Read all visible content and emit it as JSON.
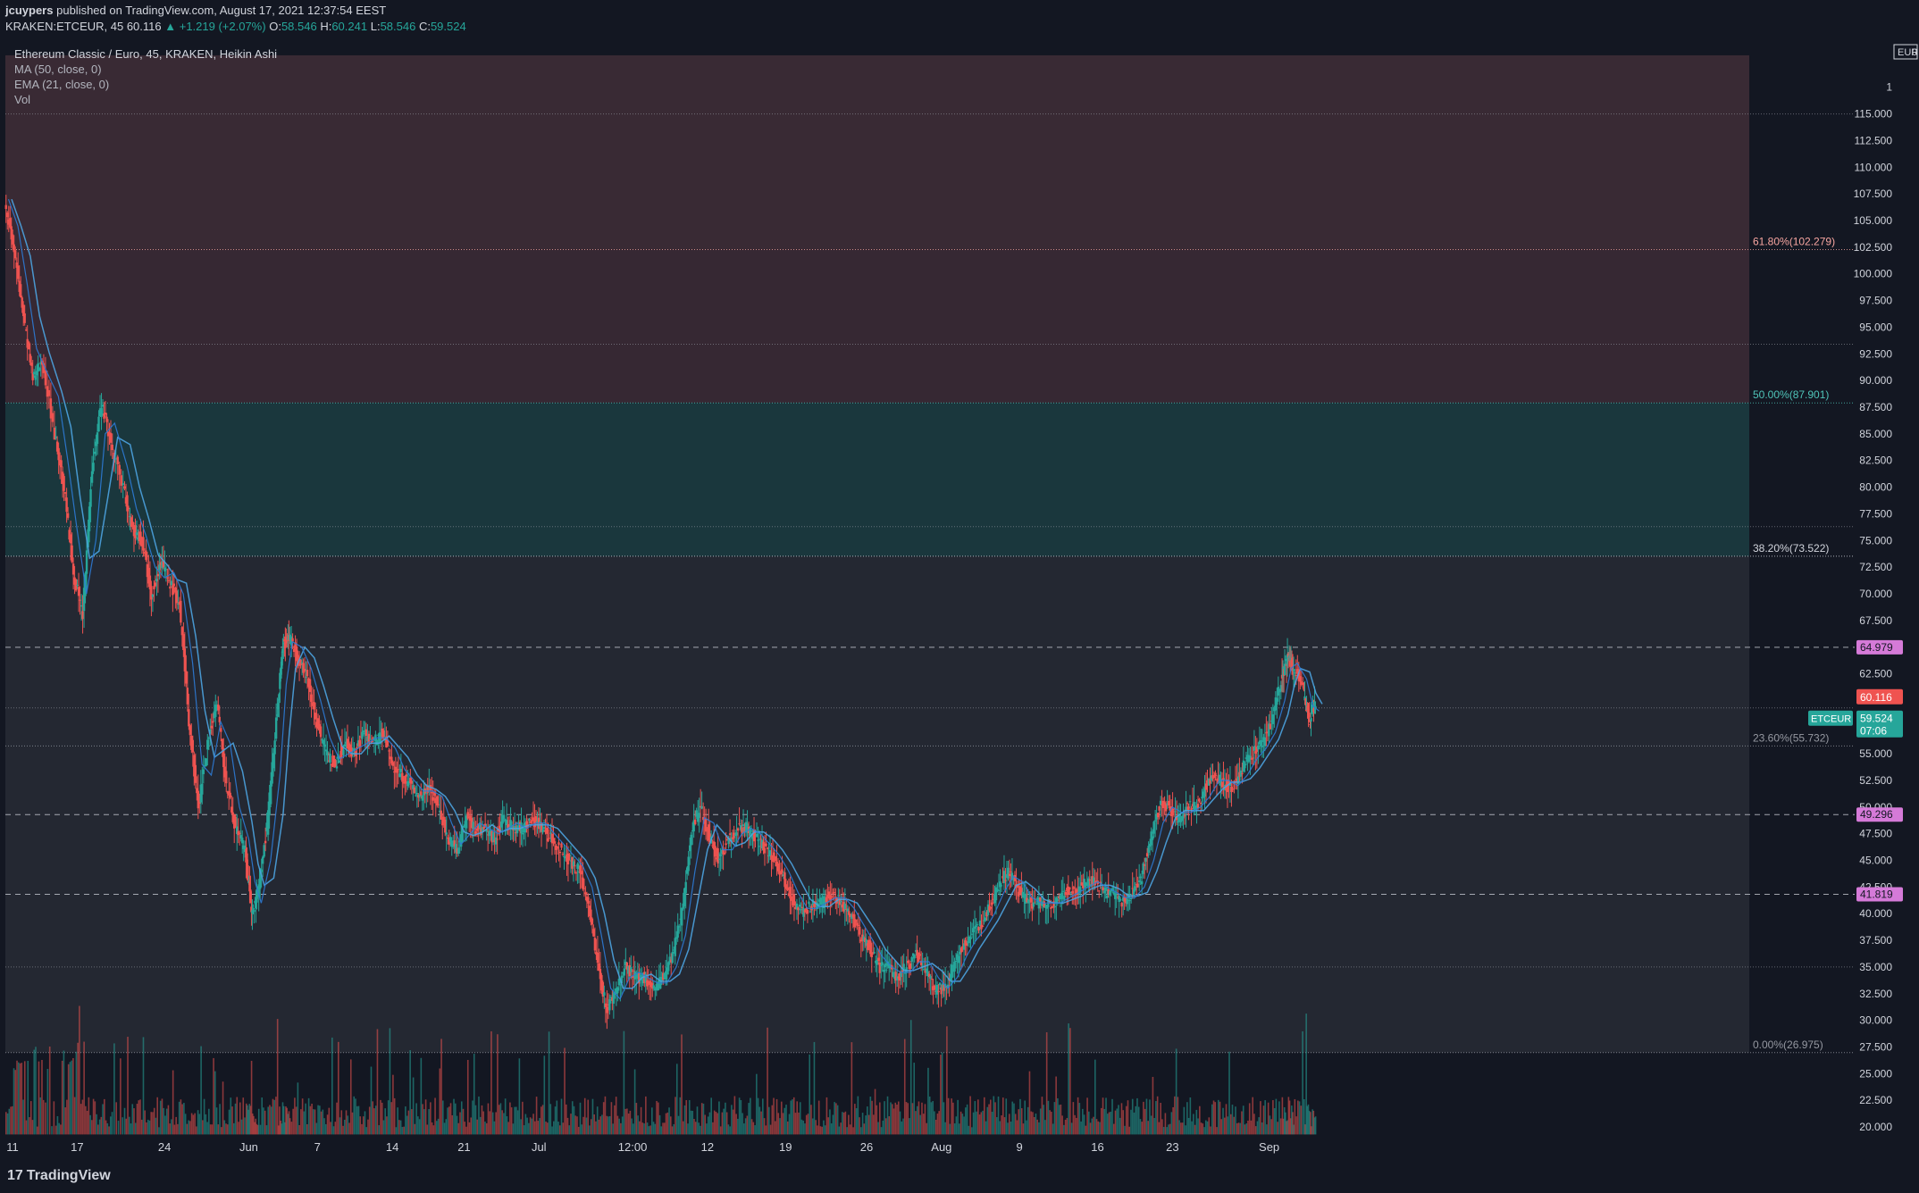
{
  "header": {
    "publisher": "jcuypers",
    "published_text": "published on TradingView.com, August 17, 2021 12:37:54 EEST",
    "symbol_line": {
      "symbol": "KRAKEN:ETCEUR, 45",
      "last": "60.116",
      "change": "▲ +1.219 (+2.07%)",
      "o_label": "O:",
      "o": "58.546",
      "h_label": "H:",
      "h": "60.241",
      "l_label": "L:",
      "l": "58.546",
      "c_label": "C:",
      "c": "59.524"
    }
  },
  "legend": {
    "title": "Ethereum Classic / Euro, 45, KRAKEN, Heikin Ashi",
    "ma": "MA (50, close, 0)",
    "ema": "EMA (21, close, 0)",
    "vol": "Vol"
  },
  "footer": {
    "logo": "TradingView",
    "logo_mark": "17"
  },
  "colors": {
    "background": "#131722",
    "up": "#26a69a",
    "down": "#ef5350",
    "ma_line": "#4da3e0",
    "ema_line": "#2e7bd6",
    "fib_red_zone": "#5a3a44",
    "fib_teal_zone": "#1e4648",
    "fib_gray_zone": "#3a3e48",
    "key_level": "#d57ad8"
  },
  "chart_data": {
    "type": "candlestick",
    "style": "Heikin Ashi",
    "currency": "EUR",
    "ylim": [
      19,
      122
    ],
    "x_ticks": [
      "11",
      "17",
      "24",
      "Jun",
      "7",
      "14",
      "21",
      "Jul",
      "12:00",
      "12",
      "19",
      "26",
      "Aug",
      "9",
      "16",
      "23",
      "Sep"
    ],
    "y_ticks": [
      "20.000",
      "22.500",
      "25.000",
      "27.500",
      "30.000",
      "32.500",
      "35.000",
      "37.500",
      "40.000",
      "42.500",
      "45.000",
      "47.500",
      "50.000",
      "52.500",
      "55.000",
      "57.500",
      "60.000",
      "62.500",
      "65.000",
      "67.500",
      "70.000",
      "72.500",
      "75.000",
      "77.500",
      "80.000",
      "82.500",
      "85.000",
      "87.500",
      "90.000",
      "92.500",
      "95.000",
      "97.500",
      "100.000",
      "102.500",
      "105.000",
      "107.500",
      "110.000",
      "112.500",
      "115.000",
      "1"
    ],
    "fib_levels": [
      {
        "label": "61.80%(102.279)",
        "value": 102.279
      },
      {
        "label": "50.00%(87.901)",
        "value": 87.901
      },
      {
        "label": "38.20%(73.522)",
        "value": 73.522
      },
      {
        "label": "23.60%(55.732)",
        "value": 55.732
      },
      {
        "label": "0.00%(26.975)",
        "value": 26.975
      }
    ],
    "key_levels": [
      {
        "label": "64.979",
        "value": 64.979
      },
      {
        "label": "49.296",
        "value": 49.296
      },
      {
        "label": "41.819",
        "value": 41.819
      }
    ],
    "price_tags": {
      "last": "60.116",
      "symbol": "ETCEUR",
      "close": "59.524",
      "countdown": "07:06",
      "currency": "EUR",
      "currency_suffix": "0"
    },
    "path": [
      [
        0,
        107
      ],
      [
        3,
        102
      ],
      [
        6,
        96
      ],
      [
        9,
        90
      ],
      [
        12,
        92
      ],
      [
        16,
        85
      ],
      [
        19,
        80
      ],
      [
        22,
        72
      ],
      [
        25,
        68
      ],
      [
        28,
        82
      ],
      [
        31,
        88
      ],
      [
        34,
        84
      ],
      [
        38,
        80
      ],
      [
        41,
        76
      ],
      [
        44,
        75
      ],
      [
        47,
        70
      ],
      [
        50,
        73
      ],
      [
        53,
        71
      ],
      [
        56,
        69
      ],
      [
        59,
        58
      ],
      [
        62,
        50
      ],
      [
        65,
        56
      ],
      [
        68,
        60
      ],
      [
        71,
        52
      ],
      [
        74,
        48
      ],
      [
        77,
        46
      ],
      [
        79,
        40
      ],
      [
        81,
        42
      ],
      [
        84,
        48
      ],
      [
        87,
        58
      ],
      [
        89,
        65
      ],
      [
        91,
        66
      ],
      [
        94,
        64
      ],
      [
        97,
        62
      ],
      [
        100,
        58
      ],
      [
        103,
        55
      ],
      [
        106,
        54
      ],
      [
        109,
        56
      ],
      [
        112,
        55
      ],
      [
        115,
        57
      ],
      [
        118,
        56
      ],
      [
        121,
        57
      ],
      [
        124,
        54
      ],
      [
        127,
        53
      ],
      [
        130,
        52
      ],
      [
        133,
        51
      ],
      [
        136,
        52
      ],
      [
        139,
        50
      ],
      [
        142,
        47
      ],
      [
        145,
        46
      ],
      [
        148,
        49
      ],
      [
        151,
        48
      ],
      [
        154,
        48
      ],
      [
        157,
        47
      ],
      [
        160,
        49
      ],
      [
        163,
        48
      ],
      [
        166,
        48
      ],
      [
        169,
        49
      ],
      [
        172,
        48
      ],
      [
        175,
        47
      ],
      [
        178,
        46
      ],
      [
        181,
        45
      ],
      [
        184,
        44
      ],
      [
        187,
        41
      ],
      [
        190,
        35
      ],
      [
        193,
        31
      ],
      [
        196,
        33
      ],
      [
        199,
        35
      ],
      [
        202,
        34
      ],
      [
        205,
        34
      ],
      [
        208,
        33
      ],
      [
        211,
        34
      ],
      [
        214,
        36
      ],
      [
        217,
        40
      ],
      [
        220,
        48
      ],
      [
        223,
        50
      ],
      [
        226,
        47
      ],
      [
        229,
        45
      ],
      [
        232,
        47
      ],
      [
        235,
        48
      ],
      [
        238,
        48
      ],
      [
        241,
        47
      ],
      [
        244,
        46
      ],
      [
        247,
        45
      ],
      [
        250,
        43
      ],
      [
        253,
        41
      ],
      [
        256,
        40
      ],
      [
        259,
        41
      ],
      [
        262,
        41
      ],
      [
        265,
        42
      ],
      [
        268,
        41
      ],
      [
        271,
        40
      ],
      [
        274,
        38
      ],
      [
        277,
        37
      ],
      [
        280,
        35
      ],
      [
        283,
        35
      ],
      [
        286,
        34
      ],
      [
        289,
        35
      ],
      [
        292,
        36
      ],
      [
        295,
        35
      ],
      [
        298,
        33
      ],
      [
        301,
        33
      ],
      [
        304,
        35
      ],
      [
        307,
        37
      ],
      [
        310,
        38
      ],
      [
        313,
        39
      ],
      [
        316,
        41
      ],
      [
        319,
        43
      ],
      [
        322,
        44
      ],
      [
        325,
        42
      ],
      [
        328,
        41
      ],
      [
        331,
        41
      ],
      [
        334,
        41
      ],
      [
        337,
        41
      ],
      [
        340,
        42
      ],
      [
        343,
        42
      ],
      [
        346,
        43
      ],
      [
        349,
        43
      ],
      [
        352,
        42
      ],
      [
        355,
        42
      ],
      [
        358,
        41
      ],
      [
        361,
        42
      ],
      [
        364,
        43
      ],
      [
        367,
        47
      ],
      [
        370,
        50
      ],
      [
        373,
        50
      ],
      [
        376,
        49
      ],
      [
        379,
        50
      ],
      [
        382,
        50
      ],
      [
        385,
        52
      ],
      [
        388,
        53
      ],
      [
        391,
        52
      ],
      [
        394,
        52
      ],
      [
        397,
        54
      ],
      [
        400,
        55
      ],
      [
        403,
        56
      ],
      [
        406,
        58
      ],
      [
        409,
        62
      ],
      [
        411,
        64
      ],
      [
        413,
        63
      ],
      [
        416,
        61
      ],
      [
        418,
        58
      ],
      [
        420,
        60
      ]
    ],
    "x_domain": [
      0,
      560
    ],
    "volume_note": "volume bars per candle, relative height"
  }
}
